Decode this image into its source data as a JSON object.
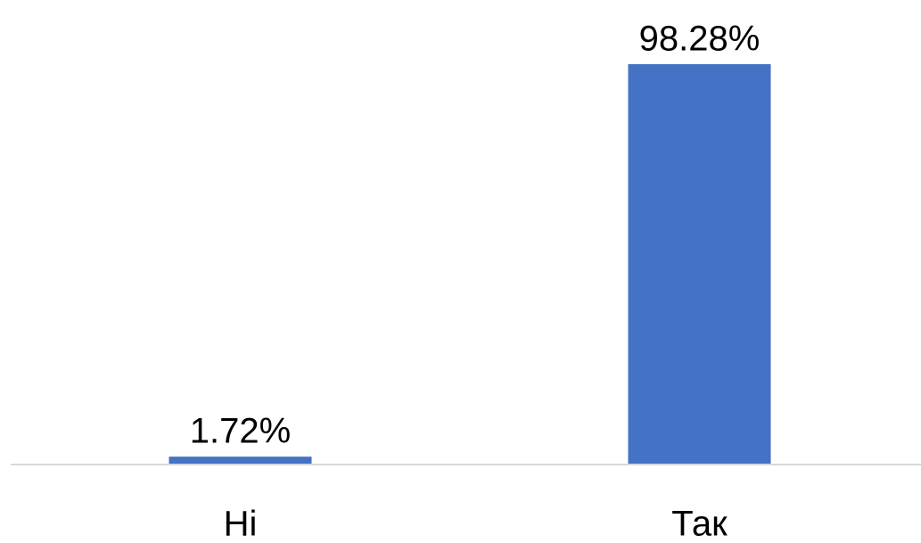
{
  "chart_data": {
    "type": "bar",
    "categories": [
      "Ні",
      "Так"
    ],
    "values": [
      1.72,
      98.28
    ],
    "value_labels": [
      "1.72%",
      "98.28%"
    ],
    "color": "#4472c4"
  }
}
